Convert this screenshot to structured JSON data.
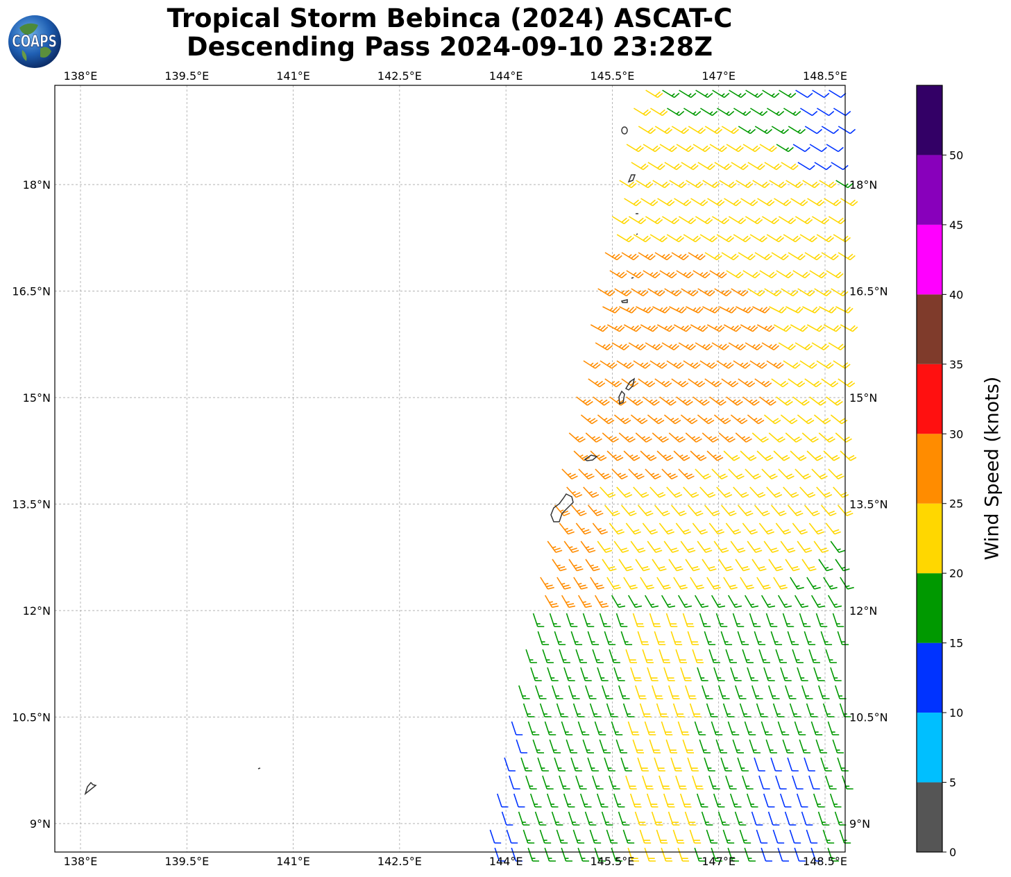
{
  "title": {
    "line1": "Tropical Storm Bebinca (2024) ASCAT-C",
    "line2": "Descending Pass 2024-09-10 23:28Z"
  },
  "logo": {
    "text": "COAPS",
    "icon": "globe-icon"
  },
  "chart_data": {
    "type": "wind-barb-map",
    "lon_range": [
      137.8,
      149.0
    ],
    "lat_range": [
      8.6,
      19.4
    ],
    "lon_ticks": [
      "138°E",
      "139.5°E",
      "141°E",
      "142.5°E",
      "144°E",
      "145.5°E",
      "147°E",
      "148.5°E"
    ],
    "lon_values": [
      138,
      139.5,
      141,
      142.5,
      144,
      145.5,
      147,
      148.5
    ],
    "lat_ticks": [
      "9°N",
      "10.5°N",
      "12°N",
      "13.5°N",
      "15°N",
      "16.5°N",
      "18°N"
    ],
    "lat_values": [
      9,
      10.5,
      12,
      13.5,
      15,
      16.5,
      18
    ],
    "grid": true,
    "colorbar": {
      "label": "Wind Speed (knots)",
      "ticks": [
        "0",
        "5",
        "10",
        "15",
        "20",
        "25",
        "30",
        "35",
        "40",
        "45",
        "50"
      ],
      "bins": [
        {
          "min": 0,
          "max": 5,
          "color": "#555555"
        },
        {
          "min": 5,
          "max": 10,
          "color": "#00bfff"
        },
        {
          "min": 10,
          "max": 15,
          "color": "#0033ff"
        },
        {
          "min": 15,
          "max": 20,
          "color": "#009900"
        },
        {
          "min": 20,
          "max": 25,
          "color": "#ffd700"
        },
        {
          "min": 25,
          "max": 30,
          "color": "#ff8c00"
        },
        {
          "min": 30,
          "max": 35,
          "color": "#ff1010"
        },
        {
          "min": 35,
          "max": 40,
          "color": "#7f3b2b"
        },
        {
          "min": 40,
          "max": 45,
          "color": "#ff00ff"
        },
        {
          "min": 45,
          "max": 50,
          "color": "#8800bb"
        },
        {
          "min": 50,
          "max": 55,
          "color": "#330066"
        }
      ]
    },
    "swath": {
      "description_regions": [
        {
          "region": "north-east edge",
          "speed_kt": 12
        },
        {
          "region": "north",
          "speed_kt": 17
        },
        {
          "region": "central",
          "speed_kt": 22
        },
        {
          "region": "core near 15-16.5N 145-146.5E",
          "speed_kt": 27
        },
        {
          "region": "south",
          "speed_kt": 17
        }
      ]
    }
  }
}
